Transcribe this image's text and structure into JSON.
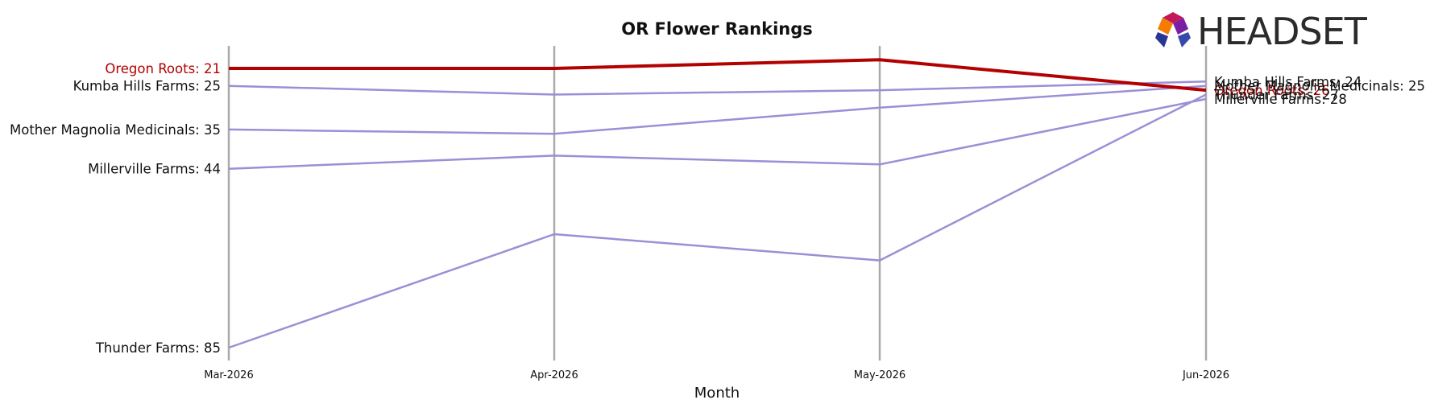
{
  "chart_data": {
    "type": "line",
    "title": "OR Flower Rankings",
    "xlabel": "Month",
    "ylabel": "",
    "x": [
      "Mar-2026",
      "Apr-2026",
      "May-2026",
      "Jun-2026"
    ],
    "y_inverted": true,
    "ylim": [
      18,
      92
    ],
    "grid": "vertical lines at each month",
    "series": [
      {
        "name": "Oregon Roots",
        "values": [
          21,
          21,
          19,
          26
        ],
        "color": "#b30000",
        "highlight": true
      },
      {
        "name": "Kumba Hills Farms",
        "values": [
          25,
          27,
          26,
          24
        ],
        "color": "#9b8fd6"
      },
      {
        "name": "Mother Magnolia Medicinals",
        "values": [
          35,
          36,
          30,
          25
        ],
        "color": "#9b8fd6"
      },
      {
        "name": "Millerville Farms",
        "values": [
          44,
          41,
          43,
          28
        ],
        "color": "#9b8fd6"
      },
      {
        "name": "Thunder Farms",
        "values": [
          85,
          59,
          65,
          27
        ],
        "color": "#9b8fd6"
      }
    ],
    "start_labels": [
      "Oregon Roots: 21",
      "Kumba Hills Farms: 25",
      "Mother Magnolia Medicinals: 35",
      "Millerville Farms: 44",
      "Thunder Farms: 85"
    ],
    "end_labels": [
      "Oregon Roots: 26",
      "Kumba Hills Farms: 24",
      "Mother Magnolia Medicinals: 25",
      "Millerville Farms: 28",
      "Thunder Farms: 27"
    ]
  },
  "logo": {
    "text": "HEADSET",
    "colors": {
      "red": "#c2185b",
      "orange": "#f57c00",
      "purple": "#7b1fa2",
      "navy": "#283593"
    }
  }
}
